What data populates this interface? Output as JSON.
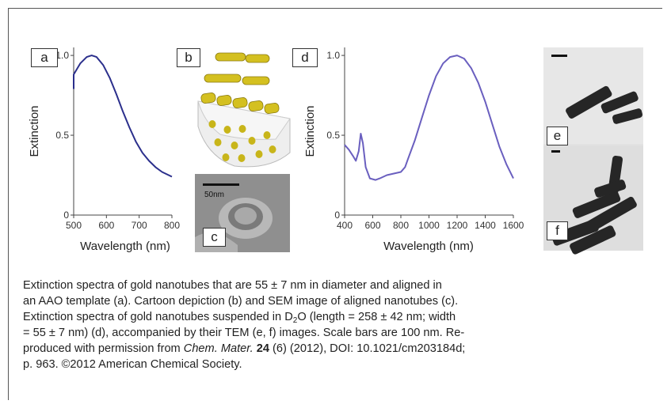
{
  "panels": {
    "a": {
      "label": "a"
    },
    "b": {
      "label": "b"
    },
    "c": {
      "label": "c",
      "scale_text": "50nm"
    },
    "d": {
      "label": "d"
    },
    "e": {
      "label": "e"
    },
    "f": {
      "label": "f"
    }
  },
  "chart_data": [
    {
      "type": "line",
      "panel": "a",
      "xlabel": "Wavelength (nm)",
      "ylabel": "Extinction",
      "xlim": [
        500,
        800
      ],
      "ylim": [
        0,
        1.05
      ],
      "xticks": [
        500,
        600,
        700,
        800
      ],
      "yticks": [
        0,
        0.5,
        1.0
      ],
      "xtick_labels": [
        "500",
        "600",
        "700",
        "800"
      ],
      "ytick_labels": [
        "0",
        "0.5",
        "1.0"
      ],
      "color": "#2b2f8c",
      "series": [
        {
          "x": [
            480,
            500,
            520,
            540,
            555,
            570,
            590,
            610,
            630,
            650,
            670,
            690,
            710,
            730,
            750,
            770,
            790,
            800
          ],
          "y": [
            0.79,
            0.88,
            0.95,
            0.99,
            1.0,
            0.99,
            0.94,
            0.86,
            0.76,
            0.65,
            0.55,
            0.46,
            0.39,
            0.34,
            0.3,
            0.27,
            0.25,
            0.24
          ]
        }
      ]
    },
    {
      "type": "line",
      "panel": "d",
      "xlabel": "Wavelength (nm)",
      "ylabel": "Extinction",
      "xlim": [
        400,
        1600
      ],
      "ylim": [
        0,
        1.05
      ],
      "xticks": [
        400,
        600,
        800,
        1000,
        1200,
        1400,
        1600
      ],
      "yticks": [
        0,
        0.5,
        1.0
      ],
      "xtick_labels": [
        "400",
        "600",
        "800",
        "1000",
        "1200",
        "1400",
        "1600"
      ],
      "ytick_labels": [
        "0",
        "0.5",
        "1.0"
      ],
      "color": "#6a5fbf",
      "series": [
        {
          "x": [
            400,
            430,
            460,
            480,
            500,
            515,
            530,
            550,
            580,
            620,
            650,
            700,
            750,
            800,
            830,
            850,
            900,
            950,
            1000,
            1050,
            1100,
            1150,
            1200,
            1250,
            1300,
            1350,
            1400,
            1450,
            1500,
            1550,
            1600
          ],
          "y": [
            0.44,
            0.41,
            0.37,
            0.34,
            0.4,
            0.51,
            0.45,
            0.3,
            0.23,
            0.22,
            0.23,
            0.25,
            0.26,
            0.27,
            0.3,
            0.35,
            0.47,
            0.61,
            0.75,
            0.87,
            0.95,
            0.99,
            1.0,
            0.98,
            0.92,
            0.83,
            0.71,
            0.57,
            0.43,
            0.32,
            0.23
          ]
        }
      ]
    }
  ],
  "caption": {
    "line1": "Extinction spectra of gold nanotubes that are 55 ± 7 nm in diameter and aligned in",
    "line2": "an AAO template (a). Cartoon depiction (b) and SEM image of aligned nanotubes (c).",
    "line3_pre": "Extinction spectra of gold nanotubes suspended in D",
    "line3_sub": "2",
    "line3_post": "O (length = 258 ± 42 nm; width",
    "line4": "= 55 ± 7 nm) (d), accompanied by their TEM (e, f) images. Scale bars are 100 nm. Re-",
    "line5_pre": "produced with permission from ",
    "line5_journal": "Chem. Mater.",
    "line5_volume": "24",
    "line5_post": " (6) (2012), DOI: 10.1021/cm203184d;",
    "line6": "p. 963. ©2012 American Chemical Society."
  }
}
